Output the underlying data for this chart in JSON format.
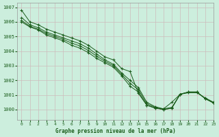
{
  "title": "Graphe pression niveau de la mer (hPa)",
  "bg_color": "#cceedd",
  "grid_color": "#b8d8cc",
  "line_color": "#1a5c1a",
  "text_color": "#1a5c1a",
  "xlim": [
    -0.5,
    23
  ],
  "ylim": [
    999.3,
    1007.3
  ],
  "yticks": [
    1000,
    1001,
    1002,
    1003,
    1004,
    1005,
    1006,
    1007
  ],
  "xticks": [
    0,
    1,
    2,
    3,
    4,
    5,
    6,
    7,
    8,
    9,
    10,
    11,
    12,
    13,
    14,
    15,
    16,
    17,
    18,
    19,
    20,
    21,
    22,
    23
  ],
  "series": [
    [
      1006.8,
      1006.0,
      1005.8,
      1005.5,
      1005.3,
      1005.1,
      1004.9,
      1004.7,
      1004.4,
      1004.0,
      1003.6,
      1003.4,
      1002.8,
      1002.6,
      1001.1,
      1000.3,
      1000.1,
      1000.05,
      1000.5,
      1001.05,
      1001.15,
      1001.15,
      1000.8,
      1000.5
    ],
    [
      1006.3,
      1005.8,
      1005.6,
      1005.3,
      1005.1,
      1004.9,
      1004.7,
      1004.5,
      1004.2,
      1003.8,
      1003.4,
      1003.1,
      1002.5,
      1002.0,
      1001.5,
      1000.5,
      1000.2,
      1000.05,
      1000.15,
      1001.05,
      1001.2,
      1001.2,
      1000.75,
      1000.45
    ],
    [
      1006.1,
      1005.7,
      1005.5,
      1005.2,
      1005.0,
      1004.8,
      1004.55,
      1004.35,
      1004.05,
      1003.65,
      1003.3,
      1003.0,
      1002.4,
      1001.8,
      1001.35,
      1000.4,
      1000.15,
      1000.0,
      1000.1,
      1001.05,
      1001.2,
      1001.2,
      1000.75,
      1000.45
    ],
    [
      1006.0,
      1005.65,
      1005.45,
      1005.1,
      1004.9,
      1004.7,
      1004.4,
      1004.2,
      1003.9,
      1003.5,
      1003.2,
      1002.9,
      1002.3,
      1001.6,
      1001.2,
      1000.3,
      1000.1,
      1000.0,
      1000.1,
      1001.05,
      1001.2,
      1001.2,
      1000.75,
      1000.45
    ]
  ]
}
